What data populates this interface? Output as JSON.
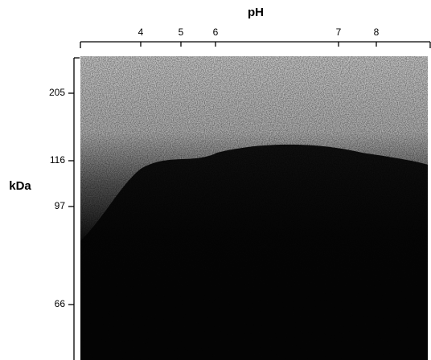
{
  "top_axis": {
    "label": "pH",
    "ticks": [
      "4",
      "5",
      "6",
      "7",
      "8"
    ]
  },
  "left_axis": {
    "label": "kDa",
    "ticks": [
      "205",
      "116",
      "97",
      "66"
    ]
  }
}
